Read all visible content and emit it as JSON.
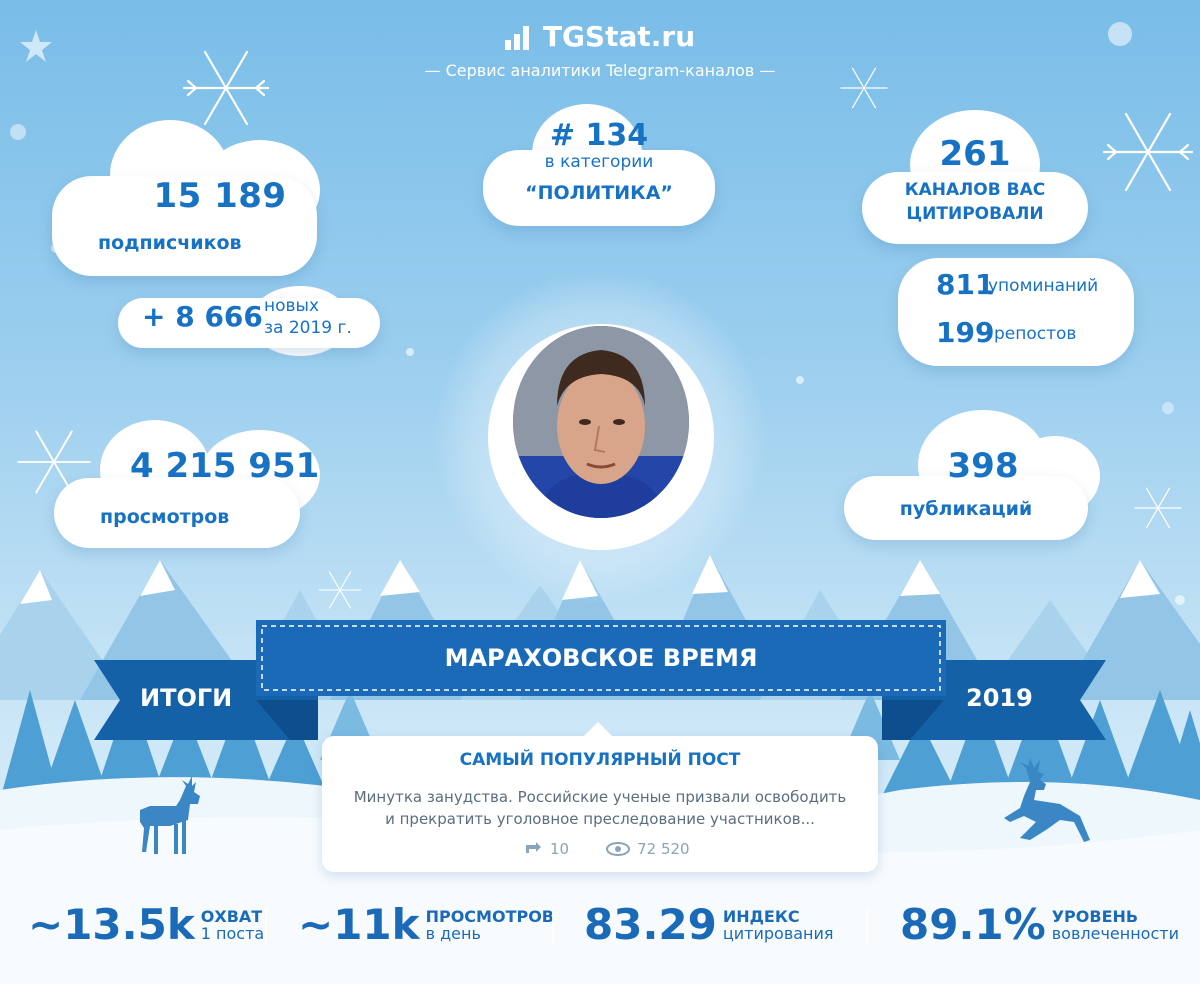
{
  "header": {
    "logo_text": "TGStat.ru",
    "subtitle": "— Сервис аналитики Telegram-каналов —"
  },
  "subscribers": {
    "value": "15 189",
    "label": "подписчиков"
  },
  "new_subs": {
    "value": "+ 8 666",
    "label_line1": "новых",
    "label_line2": "за 2019 г."
  },
  "rank": {
    "value": "# 134",
    "label_line1": "в категории",
    "label_line2": "“ПОЛИТИКА”"
  },
  "citations": {
    "value": "261",
    "label_line1": "КАНАЛОВ ВАС",
    "label_line2": "ЦИТИРОВАЛИ"
  },
  "mentions": {
    "value": "811",
    "label": "упоминаний"
  },
  "reposts": {
    "value": "199",
    "label": "репостов"
  },
  "views": {
    "value": "4 215 951",
    "label": "просмотров"
  },
  "publications": {
    "value": "398",
    "label": "публикаций"
  },
  "banner": {
    "title": "МАРАХОВСКОЕ ВРЕМЯ",
    "left": "ИТОГИ",
    "right": "2019"
  },
  "popular_post": {
    "heading": "САМЫЙ ПОПУЛЯРНЫЙ ПОСТ",
    "text_line1": "Минутка занудства. Российские ученые призвали освободить",
    "text_line2": "и прекратить уголовное преследование участников...",
    "reposts": "10",
    "views": "72 520"
  },
  "bottom_stats": [
    {
      "value": "~13.5k",
      "top": "ОХВАТ",
      "bottom": "1 поста"
    },
    {
      "value": "~11k",
      "top": "ПРОСМОТРОВ",
      "bottom": "в день"
    },
    {
      "value": "83.29",
      "top": "ИНДЕКС",
      "bottom": "цитирования"
    },
    {
      "value": "89.1%",
      "top": "УРОВЕНЬ",
      "bottom": "вовлеченности"
    }
  ],
  "colors": {
    "primary": "#1872c4",
    "banner": "#1461a8",
    "sky": "#79bde8"
  }
}
